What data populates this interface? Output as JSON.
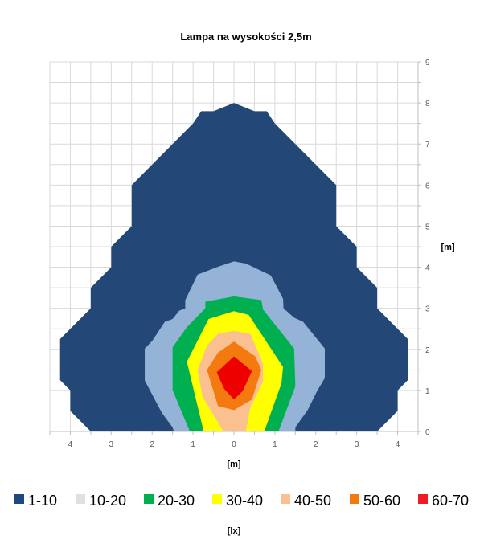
{
  "chart_data": {
    "type": "contour",
    "title": "Lampa na wysokości 2,5m",
    "xlabel": "[m]",
    "ylabel": "[m]",
    "legend_title": "[lx]",
    "legend_placement": "bottom",
    "grid": true,
    "xlim": [
      -4.5,
      4.5
    ],
    "ylim": [
      0,
      9
    ],
    "x_ticks": [
      -4,
      -3,
      -2,
      -1,
      0,
      1,
      2,
      3,
      4
    ],
    "x_tick_labels": [
      "4",
      "3",
      "2",
      "1",
      "0",
      "1",
      "2",
      "3",
      "4"
    ],
    "y_ticks": [
      0,
      1,
      2,
      3,
      4,
      5,
      6,
      7,
      8,
      9
    ],
    "y_tick_labels": [
      "0",
      "1",
      "2",
      "3",
      "4",
      "5",
      "6",
      "7",
      "8",
      "9"
    ],
    "legend": [
      {
        "label": "1-10",
        "color": "#1F497D"
      },
      {
        "label": "10-20",
        "color": "#E0E0E0"
      },
      {
        "label": "20-30",
        "color": "#00B050"
      },
      {
        "label": "30-40",
        "color": "#FFFF00"
      },
      {
        "label": "40-50",
        "color": "#FAC090"
      },
      {
        "label": "50-60",
        "color": "#F47A10"
      },
      {
        "label": "60-70",
        "color": "#EE1C25"
      }
    ],
    "bands": [
      {
        "range": "1-10",
        "color": "#234878",
        "points": [
          [
            -3.5,
            0
          ],
          [
            -4,
            0.5
          ],
          [
            -4,
            1
          ],
          [
            -4.25,
            1.25
          ],
          [
            -4.25,
            2.25
          ],
          [
            -3.5,
            3
          ],
          [
            -3.5,
            3.5
          ],
          [
            -3,
            4
          ],
          [
            -3,
            4.5
          ],
          [
            -2.5,
            5
          ],
          [
            -2.5,
            6
          ],
          [
            -1,
            7.5
          ],
          [
            -0.8,
            7.8
          ],
          [
            -0.5,
            7.8
          ],
          [
            0,
            8
          ],
          [
            0.5,
            7.8
          ],
          [
            0.8,
            7.8
          ],
          [
            1,
            7.5
          ],
          [
            2.5,
            6
          ],
          [
            2.5,
            5
          ],
          [
            3,
            4.5
          ],
          [
            3,
            4
          ],
          [
            3.5,
            3.5
          ],
          [
            3.5,
            3
          ],
          [
            4.25,
            2.25
          ],
          [
            4.25,
            1.25
          ],
          [
            4,
            1
          ],
          [
            4,
            0.5
          ],
          [
            3.5,
            0
          ]
        ]
      },
      {
        "range": "10-20",
        "color": "#95B3D7",
        "points": [
          [
            -1.47,
            0
          ],
          [
            -1.5,
            0.1
          ],
          [
            -1.76,
            0.45
          ],
          [
            -2.18,
            1.24
          ],
          [
            -2.18,
            2.02
          ],
          [
            -2,
            2.2
          ],
          [
            -1.69,
            2.67
          ],
          [
            -1.5,
            2.74
          ],
          [
            -1.34,
            2.94
          ],
          [
            -1.19,
            3.0
          ],
          [
            -1.19,
            3.2
          ],
          [
            -0.89,
            3.82
          ],
          [
            -0.39,
            4.01
          ],
          [
            0,
            4.14
          ],
          [
            0.29,
            4.09
          ],
          [
            0.9,
            3.8
          ],
          [
            1.2,
            3.23
          ],
          [
            1.21,
            3.0
          ],
          [
            1.47,
            2.77
          ],
          [
            1.69,
            2.67
          ],
          [
            2.22,
            2.02
          ],
          [
            2.22,
            1.3
          ],
          [
            2.03,
            0.98
          ],
          [
            1.8,
            0.52
          ],
          [
            1.5,
            0.1
          ],
          [
            1.5,
            0
          ]
        ]
      },
      {
        "range": "20-30",
        "color": "#00B050",
        "points": [
          [
            -1.08,
            0
          ],
          [
            -1.5,
            1.01
          ],
          [
            -1.5,
            2.05
          ],
          [
            -1.15,
            2.54
          ],
          [
            -0.7,
            3.0
          ],
          [
            -0.7,
            3.16
          ],
          [
            0,
            3.29
          ],
          [
            0.67,
            3.2
          ],
          [
            0.71,
            2.97
          ],
          [
            1.47,
            2.02
          ],
          [
            1.5,
            1.1
          ],
          [
            1.09,
            0
          ]
        ]
      },
      {
        "range": "30-40",
        "color": "#FFFF00",
        "points": [
          [
            -0.74,
            0
          ],
          [
            -1.15,
            1.7
          ],
          [
            -0.62,
            2.74
          ],
          [
            0,
            2.93
          ],
          [
            0.36,
            2.84
          ],
          [
            1.2,
            1.57
          ],
          [
            1.16,
            1.17
          ],
          [
            0.74,
            0
          ]
        ]
      },
      {
        "range": "40-50",
        "color": "#FAC090",
        "points": [
          [
            -0.26,
            0
          ],
          [
            -0.77,
            0.85
          ],
          [
            -0.89,
            1.5
          ],
          [
            -0.66,
            2.09
          ],
          [
            -0.39,
            2.38
          ],
          [
            0,
            2.45
          ],
          [
            0.4,
            2.38
          ],
          [
            0.71,
            1.66
          ],
          [
            0.71,
            1.21
          ],
          [
            0.4,
            0.59
          ],
          [
            0.29,
            0
          ]
        ]
      },
      {
        "range": "50-60",
        "color": "#F47A10",
        "points": [
          [
            0,
            2.19
          ],
          [
            0.52,
            1.83
          ],
          [
            0.67,
            1.5
          ],
          [
            0.44,
            0.78
          ],
          [
            0,
            0.52
          ],
          [
            -0.39,
            0.62
          ],
          [
            -0.66,
            1.5
          ],
          [
            -0.39,
            1.92
          ]
        ]
      },
      {
        "range": "60-70",
        "color": "#EE0000",
        "points": [
          [
            0,
            1.83
          ],
          [
            0.44,
            1.47
          ],
          [
            0.21,
            0.98
          ],
          [
            0,
            0.78
          ],
          [
            -0.24,
            1.04
          ],
          [
            -0.42,
            1.44
          ]
        ]
      }
    ]
  }
}
